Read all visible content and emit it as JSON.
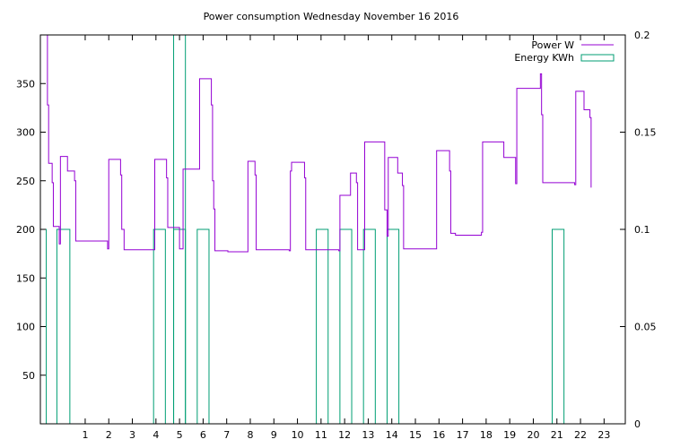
{
  "chart_data": {
    "type": "line",
    "title": "Power consumption Wednesday November 16 2016",
    "xlabel": "",
    "ylabel": "",
    "y2label": "",
    "xlim": [
      -0.9,
      23.9
    ],
    "ylim": [
      0,
      400
    ],
    "y2lim": [
      0,
      0.2
    ],
    "xticks": [
      1,
      2,
      3,
      4,
      5,
      6,
      7,
      8,
      9,
      10,
      11,
      12,
      13,
      14,
      15,
      16,
      17,
      18,
      19,
      20,
      21,
      22,
      23
    ],
    "yticks": [
      50,
      100,
      150,
      200,
      250,
      300,
      350
    ],
    "y2ticks": [
      0,
      0.05,
      0.1,
      0.15,
      0.2
    ],
    "y2tick_labels": [
      "0",
      "0.05",
      "0.1",
      "0.15",
      "0.2"
    ],
    "grid": false,
    "legend_position": "top-right",
    "colors": {
      "power": "#9400d3",
      "energy": "#009e73"
    },
    "series": [
      {
        "name": "Power W",
        "axis": "y",
        "style": "steps",
        "points": [
          [
            -0.65,
            400
          ],
          [
            -0.6,
            328
          ],
          [
            -0.55,
            268
          ],
          [
            -0.45,
            268
          ],
          [
            -0.4,
            248
          ],
          [
            -0.35,
            203
          ],
          [
            -0.15,
            203
          ],
          [
            -0.1,
            185
          ],
          [
            -0.05,
            275
          ],
          [
            0.2,
            275
          ],
          [
            0.25,
            260
          ],
          [
            0.5,
            260
          ],
          [
            0.55,
            250
          ],
          [
            0.6,
            188
          ],
          [
            1.9,
            188
          ],
          [
            1.95,
            180
          ],
          [
            2.0,
            272
          ],
          [
            2.45,
            272
          ],
          [
            2.5,
            256
          ],
          [
            2.55,
            200
          ],
          [
            2.65,
            179
          ],
          [
            3.9,
            179
          ],
          [
            3.95,
            272
          ],
          [
            4.4,
            272
          ],
          [
            4.45,
            253
          ],
          [
            4.5,
            202
          ],
          [
            4.95,
            202
          ],
          [
            5.0,
            180
          ],
          [
            5.1,
            180
          ],
          [
            5.15,
            262
          ],
          [
            5.8,
            262
          ],
          [
            5.85,
            355
          ],
          [
            6.3,
            355
          ],
          [
            6.35,
            328
          ],
          [
            6.4,
            250
          ],
          [
            6.45,
            221
          ],
          [
            6.5,
            178
          ],
          [
            7.0,
            178
          ],
          [
            7.05,
            177
          ],
          [
            7.85,
            177
          ],
          [
            7.9,
            270
          ],
          [
            8.15,
            270
          ],
          [
            8.2,
            256
          ],
          [
            8.25,
            179
          ],
          [
            9.6,
            179
          ],
          [
            9.65,
            178
          ],
          [
            9.7,
            260
          ],
          [
            9.75,
            269
          ],
          [
            10.25,
            269
          ],
          [
            10.3,
            253
          ],
          [
            10.35,
            179
          ],
          [
            11.7,
            179
          ],
          [
            11.75,
            178
          ],
          [
            11.8,
            235
          ],
          [
            12.2,
            235
          ],
          [
            12.25,
            258
          ],
          [
            12.45,
            258
          ],
          [
            12.5,
            248
          ],
          [
            12.55,
            179
          ],
          [
            12.8,
            179
          ],
          [
            12.85,
            290
          ],
          [
            13.65,
            290
          ],
          [
            13.7,
            220
          ],
          [
            13.75,
            220
          ],
          [
            13.8,
            193
          ],
          [
            13.85,
            274
          ],
          [
            14.2,
            274
          ],
          [
            14.25,
            258
          ],
          [
            14.4,
            258
          ],
          [
            14.45,
            245
          ],
          [
            14.5,
            180
          ],
          [
            15.85,
            180
          ],
          [
            15.9,
            281
          ],
          [
            16.4,
            281
          ],
          [
            16.45,
            260
          ],
          [
            16.5,
            196
          ],
          [
            16.65,
            196
          ],
          [
            16.7,
            194
          ],
          [
            17.75,
            194
          ],
          [
            17.8,
            197
          ],
          [
            17.85,
            290
          ],
          [
            18.7,
            290
          ],
          [
            18.75,
            274
          ],
          [
            19.2,
            274
          ],
          [
            19.25,
            247
          ],
          [
            19.3,
            345
          ],
          [
            20.25,
            345
          ],
          [
            20.3,
            360
          ],
          [
            20.35,
            318
          ],
          [
            20.4,
            248
          ],
          [
            21.7,
            248
          ],
          [
            21.75,
            246
          ],
          [
            21.8,
            342
          ],
          [
            22.1,
            342
          ],
          [
            22.15,
            323
          ],
          [
            22.35,
            323
          ],
          [
            22.4,
            315
          ],
          [
            22.45,
            243
          ]
        ]
      },
      {
        "name": "Energy KWh",
        "axis": "y2",
        "style": "impulse-boxes",
        "boxes": [
          {
            "x": [
              -0.9,
              -0.65
            ],
            "y": 0.1
          },
          {
            "x": [
              -0.2,
              0.35
            ],
            "y": 0.1
          },
          {
            "x": [
              4.75,
              5.25
            ],
            "y": 0.1
          },
          {
            "x": [
              4.75,
              5.25
            ],
            "y": 0.2
          },
          {
            "x": [
              3.9,
              4.4
            ],
            "y": 0.1
          },
          {
            "x": [
              5.75,
              6.25
            ],
            "y": 0.1
          },
          {
            "x": [
              10.8,
              11.3
            ],
            "y": 0.1
          },
          {
            "x": [
              11.8,
              12.3
            ],
            "y": 0.1
          },
          {
            "x": [
              12.8,
              13.3
            ],
            "y": 0.1
          },
          {
            "x": [
              13.8,
              14.3
            ],
            "y": 0.1
          },
          {
            "x": [
              20.8,
              21.3
            ],
            "y": 0.1
          }
        ]
      }
    ]
  }
}
